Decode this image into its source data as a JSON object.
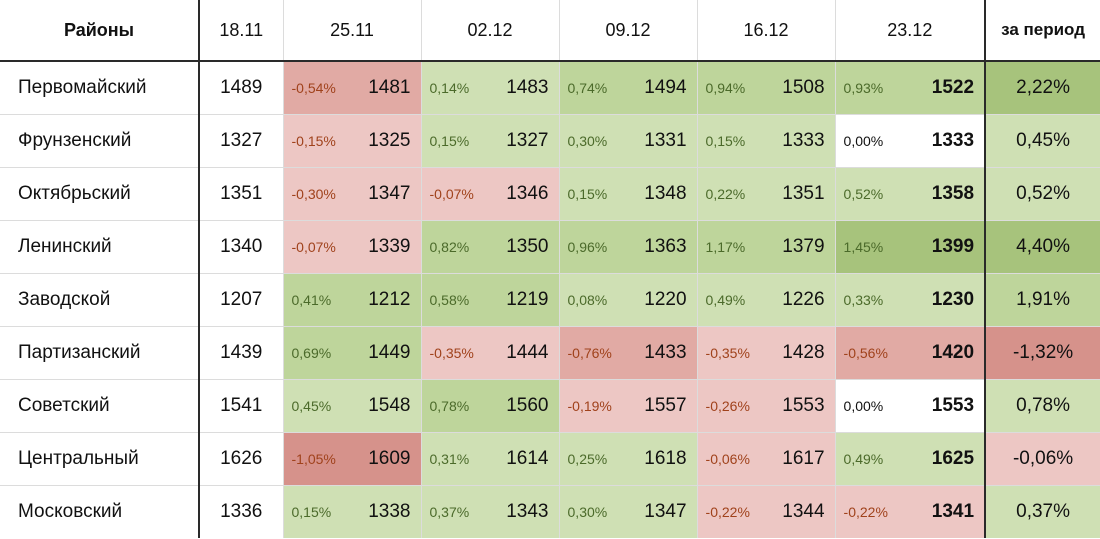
{
  "header": {
    "district_label": "Районы",
    "dates": [
      "18.11",
      "25.11",
      "02.12",
      "09.12",
      "16.12",
      "23.12"
    ],
    "period_label": "за период"
  },
  "colors": {
    "zero": "#ffffff",
    "green_light": "#cfe0b4",
    "green_mid": "#bed59b",
    "green_strong": "#a7c37c",
    "red_light": "#edc7c4",
    "red_mid": "#e1aaa4",
    "red_strong": "#d6928b"
  },
  "rows": [
    {
      "name": "Первомайский",
      "base": "1489",
      "weeks": [
        {
          "pct": "-0,54%",
          "val": "1481",
          "tone": "red_mid"
        },
        {
          "pct": "0,14%",
          "val": "1483",
          "tone": "green_light"
        },
        {
          "pct": "0,74%",
          "val": "1494",
          "tone": "green_mid"
        },
        {
          "pct": "0,94%",
          "val": "1508",
          "tone": "green_mid"
        },
        {
          "pct": "0,93%",
          "val": "1522",
          "tone": "green_mid"
        }
      ],
      "period": "2,22%",
      "period_tone": "green_strong"
    },
    {
      "name": "Фрунзенский",
      "base": "1327",
      "weeks": [
        {
          "pct": "-0,15%",
          "val": "1325",
          "tone": "red_light"
        },
        {
          "pct": "0,15%",
          "val": "1327",
          "tone": "green_light"
        },
        {
          "pct": "0,30%",
          "val": "1331",
          "tone": "green_light"
        },
        {
          "pct": "0,15%",
          "val": "1333",
          "tone": "green_light"
        },
        {
          "pct": "0,00%",
          "val": "1333",
          "tone": "zero"
        }
      ],
      "period": "0,45%",
      "period_tone": "green_light"
    },
    {
      "name": "Октябрьский",
      "base": "1351",
      "weeks": [
        {
          "pct": "-0,30%",
          "val": "1347",
          "tone": "red_light"
        },
        {
          "pct": "-0,07%",
          "val": "1346",
          "tone": "red_light"
        },
        {
          "pct": "0,15%",
          "val": "1348",
          "tone": "green_light"
        },
        {
          "pct": "0,22%",
          "val": "1351",
          "tone": "green_light"
        },
        {
          "pct": "0,52%",
          "val": "1358",
          "tone": "green_light"
        }
      ],
      "period": "0,52%",
      "period_tone": "green_light"
    },
    {
      "name": "Ленинский",
      "base": "1340",
      "weeks": [
        {
          "pct": "-0,07%",
          "val": "1339",
          "tone": "red_light"
        },
        {
          "pct": "0,82%",
          "val": "1350",
          "tone": "green_mid"
        },
        {
          "pct": "0,96%",
          "val": "1363",
          "tone": "green_mid"
        },
        {
          "pct": "1,17%",
          "val": "1379",
          "tone": "green_mid"
        },
        {
          "pct": "1,45%",
          "val": "1399",
          "tone": "green_strong"
        }
      ],
      "period": "4,40%",
      "period_tone": "green_strong"
    },
    {
      "name": "Заводской",
      "base": "1207",
      "weeks": [
        {
          "pct": "0,41%",
          "val": "1212",
          "tone": "green_mid"
        },
        {
          "pct": "0,58%",
          "val": "1219",
          "tone": "green_mid"
        },
        {
          "pct": "0,08%",
          "val": "1220",
          "tone": "green_light"
        },
        {
          "pct": "0,49%",
          "val": "1226",
          "tone": "green_light"
        },
        {
          "pct": "0,33%",
          "val": "1230",
          "tone": "green_light"
        }
      ],
      "period": "1,91%",
      "period_tone": "green_mid"
    },
    {
      "name": "Партизанский",
      "base": "1439",
      "weeks": [
        {
          "pct": "0,69%",
          "val": "1449",
          "tone": "green_mid"
        },
        {
          "pct": "-0,35%",
          "val": "1444",
          "tone": "red_light"
        },
        {
          "pct": "-0,76%",
          "val": "1433",
          "tone": "red_mid"
        },
        {
          "pct": "-0,35%",
          "val": "1428",
          "tone": "red_light"
        },
        {
          "pct": "-0,56%",
          "val": "1420",
          "tone": "red_mid"
        }
      ],
      "period": "-1,32%",
      "period_tone": "red_strong"
    },
    {
      "name": "Советский",
      "base": "1541",
      "weeks": [
        {
          "pct": "0,45%",
          "val": "1548",
          "tone": "green_light"
        },
        {
          "pct": "0,78%",
          "val": "1560",
          "tone": "green_mid"
        },
        {
          "pct": "-0,19%",
          "val": "1557",
          "tone": "red_light"
        },
        {
          "pct": "-0,26%",
          "val": "1553",
          "tone": "red_light"
        },
        {
          "pct": "0,00%",
          "val": "1553",
          "tone": "zero"
        }
      ],
      "period": "0,78%",
      "period_tone": "green_light"
    },
    {
      "name": "Центральный",
      "base": "1626",
      "weeks": [
        {
          "pct": "-1,05%",
          "val": "1609",
          "tone": "red_strong"
        },
        {
          "pct": "0,31%",
          "val": "1614",
          "tone": "green_light"
        },
        {
          "pct": "0,25%",
          "val": "1618",
          "tone": "green_light"
        },
        {
          "pct": "-0,06%",
          "val": "1617",
          "tone": "red_light"
        },
        {
          "pct": "0,49%",
          "val": "1625",
          "tone": "green_light"
        }
      ],
      "period": "-0,06%",
      "period_tone": "red_light"
    },
    {
      "name": "Московский",
      "base": "1336",
      "weeks": [
        {
          "pct": "0,15%",
          "val": "1338",
          "tone": "green_light"
        },
        {
          "pct": "0,37%",
          "val": "1343",
          "tone": "green_light"
        },
        {
          "pct": "0,30%",
          "val": "1347",
          "tone": "green_light"
        },
        {
          "pct": "-0,22%",
          "val": "1344",
          "tone": "red_light"
        },
        {
          "pct": "-0,22%",
          "val": "1341",
          "tone": "red_light"
        }
      ],
      "period": "0,37%",
      "period_tone": "green_light"
    }
  ]
}
